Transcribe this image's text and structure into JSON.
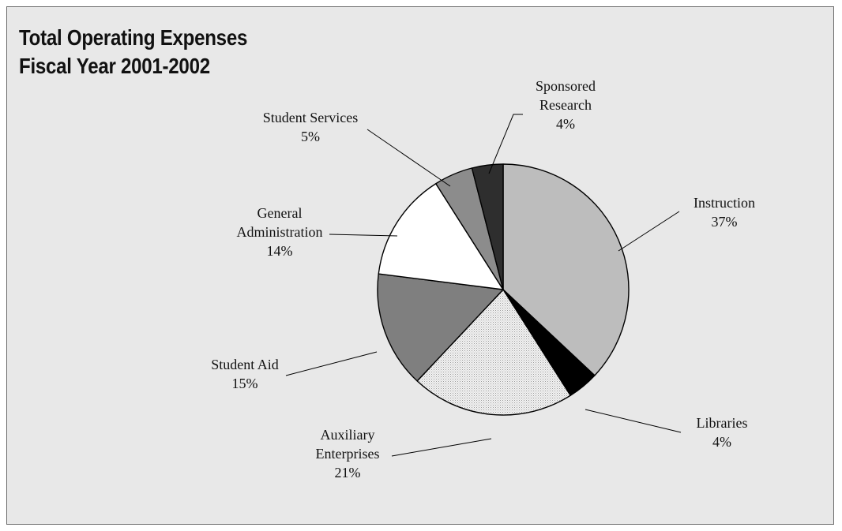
{
  "chart_data": {
    "type": "pie",
    "title_lines": [
      "Total Operating Expenses",
      "Fiscal Year 2001-2002"
    ],
    "slices": [
      {
        "key": "instruction",
        "lines": [
          "Instruction"
        ],
        "pct_label": "37%",
        "value": 37,
        "color": "#bdbdbd"
      },
      {
        "key": "libraries",
        "lines": [
          "Libraries"
        ],
        "pct_label": "4%",
        "value": 4,
        "color": "#000000"
      },
      {
        "key": "auxiliary-enterprises",
        "lines": [
          "Auxiliary",
          "Enterprises"
        ],
        "pct_label": "21%",
        "value": 21,
        "color": "#f0f0f0",
        "pattern": "dotted"
      },
      {
        "key": "student-aid",
        "lines": [
          "Student Aid"
        ],
        "pct_label": "15%",
        "value": 15,
        "color": "#7f7f7f"
      },
      {
        "key": "general-administration",
        "lines": [
          "General",
          "Administration"
        ],
        "pct_label": "14%",
        "value": 14,
        "color": "#ffffff"
      },
      {
        "key": "student-services",
        "lines": [
          "Student Services"
        ],
        "pct_label": "5%",
        "value": 5,
        "color": "#8c8c8c"
      },
      {
        "key": "sponsored-research",
        "lines": [
          "Sponsored",
          "Research"
        ],
        "pct_label": "4%",
        "value": 4,
        "color": "#2e2e2e"
      }
    ],
    "start": "12 o'clock",
    "direction": "clockwise",
    "legend": "none",
    "labels": "outside with leader lines"
  }
}
